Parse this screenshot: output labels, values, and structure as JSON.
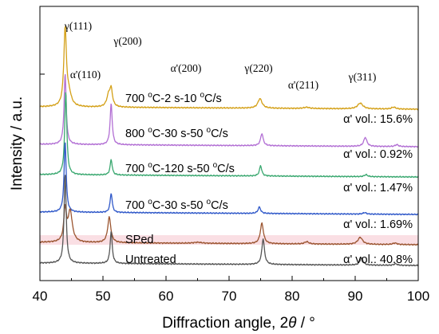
{
  "chart_data": {
    "type": "line",
    "xlabel_prefix": "Diffraction angle, 2",
    "xlabel_theta": "θ",
    "xlabel_suffix": " / °",
    "ylabel": "Intensity / a.u.",
    "xlim": [
      40,
      100
    ],
    "x_ticks": [
      40,
      50,
      60,
      70,
      80,
      90,
      100
    ],
    "y_ticks_numbers_shown": false,
    "grid": false,
    "series": [
      {
        "name": "700 °C-2 s-10 °C/s",
        "label": {
          "pre": "700 ",
          "sup1": "o",
          "mid": "C-2 s-10 ",
          "sup2": "o",
          "post": "C/s"
        },
        "color": "#d4a017",
        "offset": 5,
        "peaks": [
          [
            44.0,
            6.0,
            0.25
          ],
          [
            44.6,
            0.9,
            0.45
          ],
          [
            50.9,
            0.9,
            0.35
          ],
          [
            51.3,
            1.25,
            0.25
          ],
          [
            74.9,
            0.75,
            0.4
          ],
          [
            82.3,
            0.1,
            0.5
          ],
          [
            90.8,
            0.45,
            0.5
          ],
          [
            96.1,
            0.15,
            0.4
          ]
        ]
      },
      {
        "name": "800 °C-30 s-50 °C/s",
        "label": {
          "pre": "800 ",
          "sup1": "o",
          "mid": "C-30 s-50 ",
          "sup2": "o",
          "post": "C/s"
        },
        "color": "#b26fd4",
        "offset": 4,
        "peaks": [
          [
            44.0,
            5.5,
            0.2
          ],
          [
            51.3,
            3.2,
            0.2
          ],
          [
            75.2,
            0.95,
            0.25
          ],
          [
            91.6,
            0.7,
            0.3
          ],
          [
            96.6,
            0.15,
            0.3
          ]
        ]
      },
      {
        "name": "700 °C-120 s-50 °C/s",
        "label": {
          "pre": "700 ",
          "sup1": "o",
          "mid": "C-120 s-50 ",
          "sup2": "o",
          "post": "C/s"
        },
        "color": "#3aa870",
        "offset": 3,
        "peaks": [
          [
            44.1,
            6.5,
            0.2
          ],
          [
            51.3,
            1.2,
            0.2
          ],
          [
            75.0,
            0.8,
            0.22
          ],
          [
            91.7,
            0.15,
            0.3
          ]
        ]
      },
      {
        "name": "700 °C-30 s-50 °C/s",
        "label": {
          "pre": "700 ",
          "sup1": "o",
          "mid": "C-30 s-50 ",
          "sup2": "o",
          "post": "C/s"
        },
        "color": "#2f58c9",
        "offset": 2,
        "peaks": [
          [
            44.0,
            5.5,
            0.2
          ],
          [
            51.3,
            1.5,
            0.2
          ],
          [
            74.8,
            0.5,
            0.25
          ],
          [
            91.5,
            0.12,
            0.3
          ]
        ]
      },
      {
        "name": "SPed",
        "label": {
          "pre": "SPed"
        },
        "color": "#9b5530",
        "offset": 1,
        "peaks": [
          [
            44.0,
            2.5,
            0.25
          ],
          [
            44.8,
            2.4,
            0.4
          ],
          [
            51.0,
            2.0,
            0.3
          ],
          [
            65.0,
            0.08,
            0.8
          ],
          [
            75.2,
            1.6,
            0.3
          ],
          [
            82.3,
            0.18,
            0.4
          ],
          [
            90.8,
            0.55,
            0.45
          ],
          [
            96.3,
            0.12,
            0.4
          ]
        ]
      },
      {
        "name": "Untreated",
        "label": {
          "pre": "Untreated"
        },
        "color": "#555555",
        "offset": 0,
        "peaks": [
          [
            44.0,
            7.0,
            0.2
          ],
          [
            51.3,
            2.5,
            0.2
          ],
          [
            75.4,
            2.0,
            0.25
          ],
          [
            91.0,
            0.55,
            0.3
          ],
          [
            96.4,
            0.12,
            0.3
          ]
        ]
      }
    ],
    "peak_labels": [
      {
        "g": "γ",
        "hkl": "(111)"
      },
      {
        "g": "γ",
        "hkl": "(200)"
      },
      {
        "g": "α'",
        "hkl": "(110)"
      },
      {
        "g": "α'",
        "hkl": "(200)"
      },
      {
        "g": "γ",
        "hkl": "(220)"
      },
      {
        "g": "α'",
        "hkl": "(211)"
      },
      {
        "g": "γ",
        "hkl": "(311)"
      }
    ],
    "volume_labels": [
      "α' vol.: 15.6%",
      "α' vol.: 0.92%",
      "α' vol.: 1.47%",
      "α' vol.: 1.69%",
      "α' vol.: 40.8%"
    ],
    "pink_band": {
      "series": "SPed",
      "color": "#f4b8c4"
    }
  }
}
